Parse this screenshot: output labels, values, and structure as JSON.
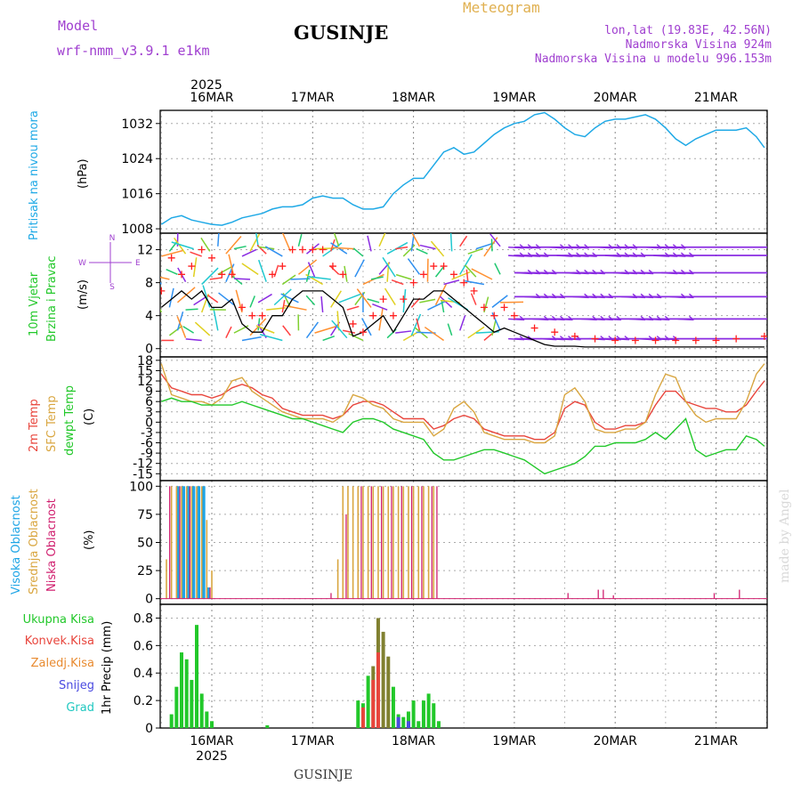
{
  "header": {
    "model_label": "Model",
    "model_name": "wrf-nmm_v3.9.1 e1km",
    "station": "GUSINJE",
    "meteogram": "Meteogram",
    "lonlat": "lon,lat (19.83E, 42.56N)",
    "altitude": "Nadmorska Visina 924m",
    "model_altitude": "Nadmorska Visina u modelu 996.153m",
    "footer_station": "GUSINJE",
    "watermark": "made by Angel",
    "year_top": "2025",
    "year_bottom": "2025"
  },
  "colors": {
    "pressure": "#1fa9e6",
    "wind_speed": "#000000",
    "gust": "#ff2020",
    "temp2m": "#e8453c",
    "sfc_temp": "#d9a640",
    "dewpt": "#22c82a",
    "cloud_high": "#1ea5e6",
    "cloud_mid": "#d9a640",
    "cloud_low": "#d0206f",
    "precip_total": "#22c82a",
    "precip_conv": "#e8453c",
    "precip_frozen": "#e88a2f",
    "snow": "#4a4ae0",
    "graupel": "#20c8c0",
    "purple_text": "#a040d0",
    "meteogram_text": "#e0b050"
  },
  "chart_data": [
    {
      "type": "line",
      "panel": "pressure",
      "ylabel_lines": [
        "Pritisak na nivou mora",
        "(hPa)"
      ],
      "ylim": [
        1007,
        1035
      ],
      "yticks": [
        1008,
        1016,
        1024,
        1032
      ],
      "x_days": [
        "16MAR",
        "17MAR",
        "18MAR",
        "19MAR",
        "20MAR",
        "21MAR"
      ],
      "xlim_day": [
        -0.5,
        5.48
      ],
      "grid": true,
      "series": [
        {
          "x": [
            -0.5,
            -0.4,
            -0.3,
            -0.2,
            -0.1,
            0.0,
            0.1,
            0.2,
            0.3,
            0.4,
            0.5,
            0.6,
            0.7,
            0.8,
            0.9,
            1.0,
            1.1,
            1.2,
            1.3,
            1.4,
            1.5,
            1.6,
            1.7,
            1.8,
            1.9,
            2.0,
            2.1,
            2.2,
            2.3,
            2.4,
            2.5,
            2.6,
            2.7,
            2.8,
            2.9,
            3.0,
            3.1,
            3.2,
            3.3,
            3.4,
            3.5,
            3.6,
            3.7,
            3.8,
            3.9,
            4.0,
            4.1,
            4.2,
            4.3,
            4.4,
            4.5,
            4.6,
            4.7,
            4.8,
            4.9,
            5.0,
            5.1,
            5.2,
            5.3,
            5.4,
            5.48
          ],
          "y": [
            1009,
            1010.5,
            1011,
            1010,
            1009.5,
            1009,
            1008.8,
            1009.5,
            1010.5,
            1011,
            1011.5,
            1012.5,
            1013,
            1013,
            1013.5,
            1015,
            1015.5,
            1015,
            1015,
            1013.5,
            1012.5,
            1012.5,
            1013,
            1016,
            1018,
            1019.5,
            1019.5,
            1022.5,
            1025.5,
            1026.5,
            1025,
            1025.5,
            1027.5,
            1029.5,
            1031,
            1032,
            1032.5,
            1034,
            1034.5,
            1033,
            1031,
            1029.5,
            1029,
            1031,
            1032.5,
            1033,
            1033,
            1033.5,
            1034,
            1033,
            1031,
            1028.5,
            1027,
            1028.5,
            1029.5,
            1030.5,
            1030.5,
            1030.5,
            1031,
            1029,
            1026.5
          ]
        }
      ]
    },
    {
      "type": "line",
      "panel": "wind",
      "ylabel_lines": [
        "10m Vjetar",
        "Brzina i Pravac",
        "(m/s)"
      ],
      "compass": [
        "S",
        "W",
        "E",
        "N"
      ],
      "ylim": [
        -1,
        14
      ],
      "yticks": [
        0,
        4,
        8,
        12
      ],
      "grid": true,
      "series": [
        {
          "name": "speed",
          "x": [
            -0.5,
            -0.4,
            -0.3,
            -0.2,
            -0.1,
            0.0,
            0.1,
            0.2,
            0.3,
            0.4,
            0.5,
            0.6,
            0.7,
            0.8,
            0.9,
            1.0,
            1.1,
            1.2,
            1.3,
            1.4,
            1.5,
            1.6,
            1.7,
            1.8,
            1.9,
            2.0,
            2.1,
            2.2,
            2.3,
            2.4,
            2.5,
            2.6,
            2.7,
            2.8,
            2.9,
            3.0,
            3.1,
            3.2,
            3.3,
            3.4,
            3.5,
            3.6,
            3.7,
            3.8,
            3.9,
            4.0,
            4.2,
            4.4,
            4.6,
            4.8,
            5.0,
            5.2,
            5.48
          ],
          "y": [
            5,
            6,
            7,
            6,
            7,
            5,
            5,
            6,
            3,
            2,
            2,
            4,
            4,
            6,
            7,
            7,
            7,
            6,
            5,
            1.5,
            2,
            3,
            4,
            2,
            4,
            6,
            6,
            7,
            7,
            6,
            5,
            4,
            3,
            2,
            2.5,
            2,
            1.5,
            1,
            0.5,
            0.3,
            0.3,
            0.3,
            0.2,
            0.2,
            0.2,
            0.2,
            0.2,
            0.2,
            0.2,
            0.2,
            0.2,
            0.2,
            0.2
          ]
        },
        {
          "name": "gust",
          "x": [
            -0.5,
            -0.4,
            -0.3,
            -0.2,
            -0.1,
            0.0,
            0.1,
            0.2,
            0.3,
            0.4,
            0.5,
            0.6,
            0.7,
            0.8,
            0.9,
            1.0,
            1.1,
            1.2,
            1.3,
            1.4,
            1.5,
            1.6,
            1.7,
            1.8,
            1.9,
            2.0,
            2.1,
            2.2,
            2.3,
            2.4,
            2.5,
            2.6,
            2.7,
            2.8,
            2.9,
            3.0,
            3.2,
            3.4,
            3.6,
            3.8,
            4.0,
            4.2,
            4.4,
            4.6,
            4.8,
            5.0,
            5.2,
            5.48
          ],
          "y": [
            7,
            11,
            9,
            10,
            12,
            11,
            9,
            9,
            5,
            4,
            4,
            9,
            10,
            12,
            12,
            12,
            12,
            10,
            9,
            3,
            2,
            4,
            6,
            4,
            6,
            8,
            9,
            10,
            10,
            9,
            8,
            7,
            5,
            4,
            5,
            4,
            2.5,
            2,
            1.5,
            1.2,
            1,
            1,
            1,
            1,
            1,
            1,
            1.2,
            1.5
          ]
        }
      ],
      "arrow_bands": [
        {
          "y": 12.3,
          "color": "#8a2be2"
        },
        {
          "y": 11.3,
          "color": "#8a2be2"
        },
        {
          "y": 9.2,
          "color": "#8a2be2"
        },
        {
          "y": 6.3,
          "color": "#8a2be2"
        },
        {
          "y": 3.6,
          "color": "#8a2be2"
        },
        {
          "y": 1.2,
          "color": "#8a2be2"
        }
      ]
    },
    {
      "type": "line",
      "panel": "temperature",
      "ylabel_lines": [
        "2m Temp",
        "SFC Temp",
        "dewpt Temp",
        "(C)"
      ],
      "ylim": [
        -17,
        19
      ],
      "yticks": [
        -15,
        -12,
        -9,
        -6,
        -3,
        0,
        3,
        6,
        9,
        12,
        15,
        18
      ],
      "grid": true,
      "series": [
        {
          "name": "2m Temp",
          "x": [
            -0.5,
            -0.4,
            -0.3,
            -0.2,
            -0.1,
            0.0,
            0.1,
            0.2,
            0.3,
            0.4,
            0.5,
            0.6,
            0.7,
            0.8,
            0.9,
            1.0,
            1.1,
            1.2,
            1.3,
            1.4,
            1.5,
            1.6,
            1.7,
            1.8,
            1.9,
            2.0,
            2.1,
            2.2,
            2.3,
            2.4,
            2.5,
            2.6,
            2.7,
            2.8,
            2.9,
            3.0,
            3.1,
            3.2,
            3.3,
            3.4,
            3.5,
            3.6,
            3.7,
            3.8,
            3.9,
            4.0,
            4.1,
            4.2,
            4.3,
            4.4,
            4.5,
            4.6,
            4.7,
            4.8,
            4.9,
            5.0,
            5.1,
            5.2,
            5.3,
            5.4,
            5.48
          ],
          "y": [
            14,
            10,
            9,
            8,
            8,
            7,
            8,
            10,
            11,
            10,
            8,
            7,
            4,
            3,
            2,
            2,
            2,
            1,
            2,
            5,
            6,
            6,
            5,
            3,
            1,
            1,
            1,
            -2,
            -1,
            1,
            2,
            1,
            -2,
            -3,
            -4,
            -4,
            -4,
            -5,
            -5,
            -3,
            4,
            6,
            5,
            0,
            -2,
            -2,
            -1,
            -1,
            0,
            5,
            9,
            9,
            6,
            5,
            4,
            4,
            3,
            3,
            5,
            9,
            12
          ]
        },
        {
          "name": "SFC Temp",
          "x": [
            -0.5,
            -0.4,
            -0.3,
            -0.2,
            -0.1,
            0.0,
            0.1,
            0.2,
            0.3,
            0.4,
            0.5,
            0.6,
            0.7,
            0.8,
            0.9,
            1.0,
            1.1,
            1.2,
            1.3,
            1.4,
            1.5,
            1.6,
            1.7,
            1.8,
            1.9,
            2.0,
            2.1,
            2.2,
            2.3,
            2.4,
            2.5,
            2.6,
            2.7,
            2.8,
            2.9,
            3.0,
            3.1,
            3.2,
            3.3,
            3.4,
            3.5,
            3.6,
            3.7,
            3.8,
            3.9,
            4.0,
            4.1,
            4.2,
            4.3,
            4.4,
            4.5,
            4.6,
            4.7,
            4.8,
            4.9,
            5.0,
            5.1,
            5.2,
            5.3,
            5.4,
            5.48
          ],
          "y": [
            17,
            8,
            7,
            6,
            6,
            5,
            7,
            12,
            13,
            9,
            7,
            5,
            3,
            2,
            1,
            1,
            1,
            0,
            2,
            8,
            7,
            5,
            4,
            1,
            0,
            0,
            0,
            -4,
            -2,
            4,
            6,
            3,
            -3,
            -4,
            -5,
            -5,
            -5,
            -6,
            -6,
            -4,
            8,
            10,
            6,
            -2,
            -3,
            -3,
            -2,
            -2,
            0,
            8,
            14,
            13,
            6,
            2,
            0,
            1,
            1,
            1,
            6,
            14,
            17
          ]
        },
        {
          "name": "dewpt Temp",
          "x": [
            -0.5,
            -0.4,
            -0.3,
            -0.2,
            -0.1,
            0.0,
            0.1,
            0.2,
            0.3,
            0.4,
            0.5,
            0.6,
            0.7,
            0.8,
            0.9,
            1.0,
            1.1,
            1.2,
            1.3,
            1.4,
            1.5,
            1.6,
            1.7,
            1.8,
            1.9,
            2.0,
            2.1,
            2.2,
            2.3,
            2.4,
            2.5,
            2.6,
            2.7,
            2.8,
            2.9,
            3.0,
            3.1,
            3.2,
            3.3,
            3.4,
            3.5,
            3.6,
            3.7,
            3.8,
            3.9,
            4.0,
            4.1,
            4.2,
            4.3,
            4.4,
            4.5,
            4.6,
            4.7,
            4.8,
            4.9,
            5.0,
            5.1,
            5.2,
            5.3,
            5.4,
            5.48
          ],
          "y": [
            6,
            7,
            6,
            6,
            5,
            5,
            5,
            5,
            6,
            5,
            4,
            3,
            2,
            1,
            1,
            0,
            -1,
            -2,
            -3,
            0,
            1,
            1,
            0,
            -2,
            -3,
            -4,
            -5,
            -9,
            -11,
            -11,
            -10,
            -9,
            -8,
            -8,
            -9,
            -10,
            -11,
            -13,
            -15,
            -14,
            -13,
            -12,
            -10,
            -7,
            -7,
            -6,
            -6,
            -6,
            -5,
            -3,
            -5,
            -2,
            1,
            -8,
            -10,
            -9,
            -8,
            -8,
            -4,
            -5,
            -7
          ]
        }
      ]
    },
    {
      "type": "bar",
      "panel": "clouds",
      "ylabel_lines": [
        "Visoka Oblacnost",
        "Srednja Oblacnost",
        "Niska Oblacnost",
        "(%)"
      ],
      "ylim": [
        -5,
        105
      ],
      "yticks": [
        0,
        25,
        50,
        75,
        100
      ],
      "grid": true,
      "series": [
        {
          "name": "Visoka Oblacnost",
          "x": [
            -0.35,
            -0.3,
            -0.25,
            -0.2,
            -0.15,
            -0.1,
            -0.05
          ],
          "values": [
            100,
            100,
            100,
            100,
            100,
            100,
            10
          ]
        },
        {
          "name": "Srednja Oblacnost",
          "x": [
            -0.45,
            -0.4,
            -0.35,
            -0.3,
            -0.25,
            -0.2,
            -0.15,
            -0.1,
            -0.05,
            0.0,
            1.25,
            1.3,
            1.35,
            1.4,
            1.45,
            1.5,
            1.55,
            1.6,
            1.65,
            1.7,
            1.75,
            1.8,
            1.85,
            1.9,
            1.95,
            2.0,
            2.05,
            2.1,
            2.15,
            2.2
          ],
          "values": [
            35,
            100,
            100,
            100,
            100,
            100,
            100,
            100,
            70,
            25,
            35,
            100,
            100,
            100,
            100,
            100,
            100,
            100,
            100,
            100,
            100,
            100,
            100,
            100,
            100,
            100,
            100,
            100,
            100,
            100
          ]
        },
        {
          "name": "Niska Oblacnost",
          "x": [
            -0.4,
            -0.3,
            -0.2,
            0.0,
            1.2,
            1.35,
            1.5,
            1.6,
            1.7,
            1.8,
            1.9,
            2.0,
            2.1,
            2.2,
            2.25,
            3.55,
            3.85,
            3.9,
            4.0,
            5.0,
            5.25
          ],
          "values": [
            100,
            100,
            100,
            10,
            5,
            75,
            100,
            100,
            100,
            100,
            100,
            100,
            100,
            100,
            100,
            5,
            8,
            8,
            3,
            5,
            8
          ]
        }
      ]
    },
    {
      "type": "bar",
      "panel": "precip",
      "legend": [
        "Ukupna Kisa",
        "Konvek.Kisa",
        "Zaledj.Kisa",
        "Snijeg",
        "Grad"
      ],
      "ylabel_lines": [
        "1hr Precip (mm)"
      ],
      "ylim": [
        0,
        0.9
      ],
      "yticks": [
        0,
        0.2,
        0.4,
        0.6,
        0.8
      ],
      "grid": true,
      "series": [
        {
          "name": "Ukupna Kisa",
          "x": [
            -0.4,
            -0.35,
            -0.3,
            -0.25,
            -0.2,
            -0.15,
            -0.1,
            -0.05,
            0.0,
            0.55,
            1.45,
            1.5,
            1.55,
            1.6,
            1.65,
            1.7,
            1.75,
            1.8,
            1.85,
            1.9,
            1.95,
            2.0,
            2.05,
            2.1,
            2.15,
            2.2,
            2.25
          ],
          "values": [
            0.1,
            0.3,
            0.55,
            0.5,
            0.35,
            0.75,
            0.25,
            0.12,
            0.05,
            0.02,
            0.2,
            0.18,
            0.38,
            0.45,
            0.8,
            0.7,
            0.52,
            0.3,
            0.1,
            0.08,
            0.12,
            0.2,
            0.05,
            0.2,
            0.25,
            0.18,
            0.05
          ]
        },
        {
          "name": "Konvek.Kisa",
          "x": [
            1.5,
            1.6,
            1.65
          ],
          "values": [
            0.15,
            0.35,
            0.55
          ]
        },
        {
          "name": "Snijeg",
          "x": [
            1.85,
            1.95
          ],
          "values": [
            0.08,
            0.05
          ]
        }
      ]
    }
  ]
}
